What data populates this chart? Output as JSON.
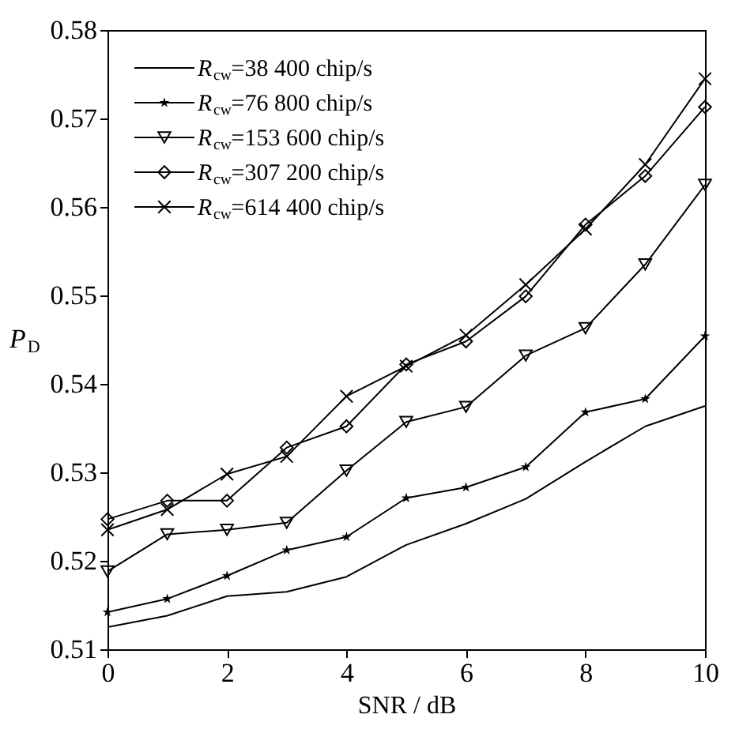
{
  "chart_data": {
    "type": "line",
    "xlabel": "SNR / dB",
    "ylabel": "P$_{D}$",
    "x": [
      0,
      1,
      2,
      3,
      4,
      5,
      6,
      7,
      8,
      9,
      10
    ],
    "series": [
      {
        "name": "R$_{cw}$=38 400 chip/s",
        "color": "#000000",
        "marker": "none",
        "values": [
          0.5125,
          0.5138,
          0.516,
          0.5165,
          0.5182,
          0.5218,
          0.5242,
          0.527,
          0.5312,
          0.5352,
          0.5375
        ]
      },
      {
        "name": "R$_{cw}$=76 800 chip/s",
        "color": "#000000",
        "marker": "star",
        "values": [
          0.5142,
          0.5157,
          0.5183,
          0.5212,
          0.5227,
          0.5271,
          0.5283,
          0.5306,
          0.5368,
          0.5383,
          0.5454
        ]
      },
      {
        "name": "R$_{cw}$=153 600 chip/s",
        "color": "#000000",
        "marker": "triangle",
        "values": [
          0.5188,
          0.523,
          0.5235,
          0.5243,
          0.5302,
          0.5357,
          0.5374,
          0.5432,
          0.5463,
          0.5535,
          0.5625
        ]
      },
      {
        "name": "R$_{cw}$=307 200 chip/s",
        "color": "#000000",
        "marker": "diamond",
        "values": [
          0.5247,
          0.5268,
          0.5268,
          0.5328,
          0.5352,
          0.5422,
          0.5448,
          0.5499,
          0.558,
          0.5635,
          0.5713
        ]
      },
      {
        "name": "R$_{cw}$=614 400 chip/s",
        "color": "#000000",
        "marker": "cross",
        "values": [
          0.5235,
          0.5258,
          0.5298,
          0.5318,
          0.5386,
          0.542,
          0.5455,
          0.5512,
          0.5575,
          0.5648,
          0.5745
        ]
      }
    ],
    "xlim": [
      0,
      10
    ],
    "xticks": [
      0,
      2,
      4,
      6,
      8,
      10
    ],
    "ylim": [
      0.51,
      0.58
    ],
    "yticks": [
      0.51,
      0.52,
      0.53,
      0.54,
      0.55,
      0.56,
      0.57,
      0.58
    ],
    "grid": false,
    "legend": "top left",
    "line_style": "solid"
  }
}
